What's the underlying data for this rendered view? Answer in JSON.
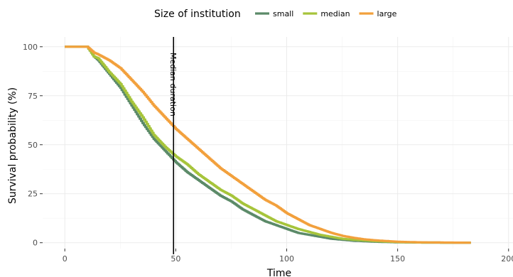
{
  "chart_data": {
    "type": "line",
    "xlabel": "Time",
    "ylabel": "Survival probability (%)",
    "xlim": [
      -10,
      202
    ],
    "ylim": [
      -3,
      105
    ],
    "x_ticks": [
      "0",
      "50",
      "100",
      "150",
      "200"
    ],
    "y_ticks": [
      "0",
      "25",
      "50",
      "75",
      "100"
    ],
    "grid": true,
    "legend": {
      "title": "Size of institution",
      "position": "top"
    },
    "annotation": {
      "label": "Median duration",
      "x": 49
    },
    "series": [
      {
        "name": "small",
        "color": "#5b8a68",
        "points": [
          [
            0,
            100
          ],
          [
            10,
            100
          ],
          [
            13,
            95
          ],
          [
            15,
            93
          ],
          [
            20,
            86
          ],
          [
            25,
            79
          ],
          [
            30,
            70
          ],
          [
            35,
            61
          ],
          [
            40,
            53
          ],
          [
            45,
            47
          ],
          [
            50,
            41
          ],
          [
            55,
            36
          ],
          [
            60,
            32
          ],
          [
            65,
            28
          ],
          [
            70,
            24
          ],
          [
            75,
            21
          ],
          [
            80,
            17
          ],
          [
            85,
            14
          ],
          [
            90,
            11
          ],
          [
            95,
            9
          ],
          [
            100,
            7
          ],
          [
            105,
            5
          ],
          [
            110,
            4
          ],
          [
            115,
            3
          ],
          [
            120,
            2
          ],
          [
            125,
            1.5
          ],
          [
            130,
            1
          ],
          [
            140,
            0.5
          ],
          [
            150,
            0.2
          ],
          [
            160,
            0.1
          ],
          [
            183,
            0
          ]
        ]
      },
      {
        "name": "median",
        "color": "#a6c43a",
        "points": [
          [
            0,
            100
          ],
          [
            10,
            100
          ],
          [
            13,
            95
          ],
          [
            15,
            94
          ],
          [
            20,
            87
          ],
          [
            25,
            81
          ],
          [
            30,
            72
          ],
          [
            35,
            64
          ],
          [
            40,
            55
          ],
          [
            45,
            49
          ],
          [
            50,
            44
          ],
          [
            55,
            40
          ],
          [
            60,
            35
          ],
          [
            65,
            31
          ],
          [
            70,
            27
          ],
          [
            75,
            24
          ],
          [
            80,
            20
          ],
          [
            85,
            17
          ],
          [
            90,
            14
          ],
          [
            95,
            11
          ],
          [
            100,
            9
          ],
          [
            105,
            7
          ],
          [
            110,
            5.5
          ],
          [
            115,
            4
          ],
          [
            120,
            3
          ],
          [
            125,
            2
          ],
          [
            130,
            1.5
          ],
          [
            140,
            0.8
          ],
          [
            150,
            0.3
          ],
          [
            160,
            0.1
          ],
          [
            183,
            0
          ]
        ]
      },
      {
        "name": "large",
        "color": "#f2a03c",
        "points": [
          [
            0,
            100
          ],
          [
            10,
            100
          ],
          [
            13,
            97
          ],
          [
            15,
            96
          ],
          [
            20,
            93
          ],
          [
            25,
            89
          ],
          [
            30,
            83
          ],
          [
            35,
            77
          ],
          [
            40,
            70
          ],
          [
            45,
            64
          ],
          [
            50,
            58
          ],
          [
            55,
            53
          ],
          [
            60,
            48
          ],
          [
            65,
            43
          ],
          [
            70,
            38
          ],
          [
            75,
            34
          ],
          [
            80,
            30
          ],
          [
            85,
            26
          ],
          [
            90,
            22
          ],
          [
            95,
            19
          ],
          [
            100,
            15
          ],
          [
            105,
            12
          ],
          [
            110,
            9
          ],
          [
            115,
            7
          ],
          [
            120,
            5
          ],
          [
            125,
            3.5
          ],
          [
            130,
            2.5
          ],
          [
            135,
            1.7
          ],
          [
            140,
            1.2
          ],
          [
            150,
            0.5
          ],
          [
            160,
            0.2
          ],
          [
            170,
            0.1
          ],
          [
            183,
            0
          ]
        ]
      }
    ]
  }
}
